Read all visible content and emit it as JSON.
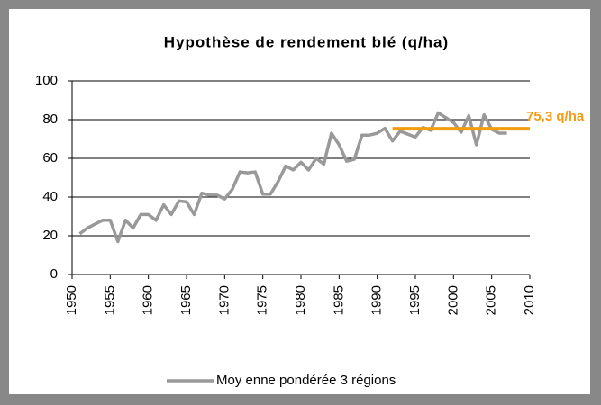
{
  "chart_data": {
    "type": "line",
    "title": "Hypothèse de rendement blé (q/ha)",
    "x": [
      1951,
      1952,
      1953,
      1954,
      1955,
      1956,
      1957,
      1958,
      1959,
      1960,
      1961,
      1962,
      1963,
      1964,
      1965,
      1966,
      1967,
      1968,
      1969,
      1970,
      1971,
      1972,
      1973,
      1974,
      1975,
      1976,
      1977,
      1978,
      1979,
      1980,
      1981,
      1982,
      1983,
      1984,
      1985,
      1986,
      1987,
      1988,
      1989,
      1990,
      1991,
      1992,
      1993,
      1994,
      1995,
      1996,
      1997,
      1998,
      1999,
      2000,
      2001,
      2002,
      2003,
      2004,
      2005,
      2006,
      2007
    ],
    "series": [
      {
        "name": "Moy enne pondérée 3 régions",
        "color": "#999999",
        "values": [
          21,
          24,
          26,
          28,
          28,
          17,
          28,
          24,
          31,
          31,
          28,
          36,
          31,
          38,
          37.5,
          31,
          42,
          41,
          41,
          39,
          44,
          53,
          52.5,
          53,
          41.5,
          41.5,
          48,
          56,
          54,
          58,
          54,
          60,
          57,
          73,
          67,
          58.5,
          59.5,
          72,
          72,
          73,
          75.5,
          69,
          74,
          72.5,
          71,
          76,
          74.5,
          83.5,
          81,
          78.5,
          73.5,
          82,
          67,
          82.5,
          75,
          73,
          73
        ]
      }
    ],
    "reference_line": {
      "value": 75.3,
      "label": "75,3 q/ha",
      "x": [
        1992,
        2010
      ],
      "color": "#f39c12"
    },
    "xlim": [
      1950,
      2010
    ],
    "xticks": [
      1950,
      1955,
      1960,
      1965,
      1970,
      1975,
      1980,
      1985,
      1990,
      1995,
      2000,
      2005,
      2010
    ],
    "ylim": [
      0,
      100
    ],
    "yticks": [
      0,
      20,
      40,
      60,
      80,
      100
    ],
    "grid": true,
    "legend": "bottom"
  }
}
